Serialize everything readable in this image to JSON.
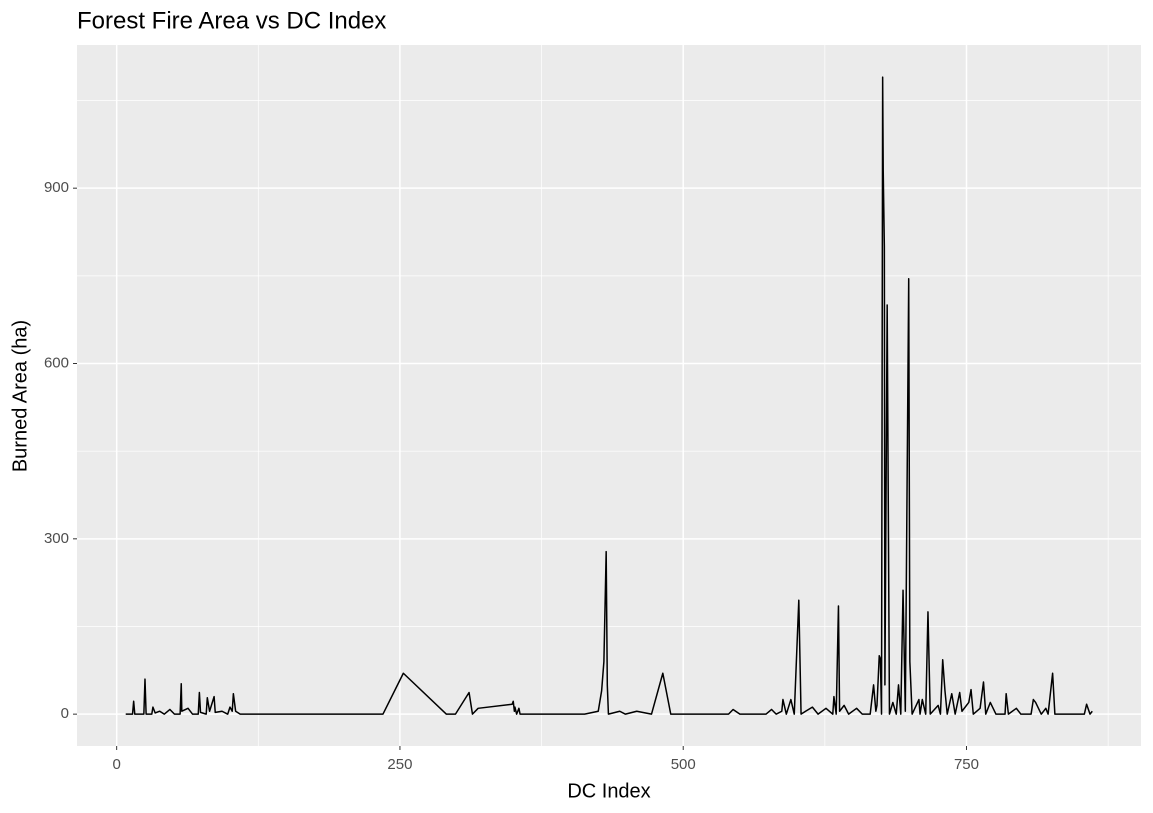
{
  "chart_data": {
    "type": "line",
    "title": "Forest Fire Area vs DC Index",
    "xlabel": "DC Index",
    "ylabel": "Burned Area (ha)",
    "x": [
      8,
      14,
      15,
      16,
      24,
      25,
      26,
      31,
      32,
      34,
      38,
      42,
      47,
      51,
      56,
      57,
      57.5,
      63,
      67,
      72,
      73,
      74,
      79,
      80,
      82,
      86,
      87,
      93,
      98,
      100,
      102,
      103,
      105,
      109,
      235,
      253,
      291,
      299,
      311,
      314,
      319,
      349,
      350,
      351,
      351.5,
      353,
      355,
      356,
      413,
      425,
      428,
      430,
      432,
      433,
      434,
      444,
      449,
      459,
      472,
      482,
      489,
      540,
      544,
      550,
      573,
      578,
      582,
      587,
      588,
      591,
      595,
      598,
      602,
      604,
      608,
      614,
      619,
      626,
      632,
      633,
      635,
      637,
      638,
      642,
      646,
      653,
      658,
      665,
      668,
      670,
      671,
      673,
      674,
      675,
      676,
      676.5,
      677.5,
      678,
      680,
      682,
      685,
      688,
      690,
      692,
      694,
      696,
      699,
      700,
      702,
      708,
      709,
      711,
      714,
      716,
      718,
      725,
      727,
      729,
      731,
      733,
      737,
      740,
      744,
      746,
      752,
      754,
      756,
      762,
      765,
      767,
      771,
      776,
      784,
      785,
      787,
      794,
      798,
      807,
      809,
      811,
      816,
      820,
      822,
      826,
      828,
      854,
      856,
      859,
      861
    ],
    "values": [
      0,
      0,
      22,
      0,
      0,
      60,
      0,
      0,
      12,
      2,
      5,
      0,
      8,
      0,
      0,
      52,
      5,
      10,
      0,
      0,
      37,
      3,
      0,
      28,
      5,
      30,
      3,
      5,
      0,
      12,
      5,
      35,
      5,
      0,
      0,
      70,
      0,
      0,
      37,
      0,
      10,
      17,
      22,
      5,
      12,
      0,
      10,
      0,
      0,
      5,
      40,
      90,
      278,
      50,
      0,
      5,
      0,
      5,
      0,
      70,
      0,
      0,
      8,
      0,
      0,
      8,
      0,
      5,
      25,
      0,
      25,
      0,
      195,
      0,
      5,
      12,
      0,
      10,
      0,
      30,
      0,
      185,
      5,
      15,
      0,
      10,
      0,
      0,
      50,
      5,
      15,
      100,
      95,
      0,
      1090,
      930,
      800,
      50,
      700,
      0,
      20,
      0,
      50,
      0,
      212,
      5,
      745,
      90,
      0,
      25,
      0,
      25,
      0,
      175,
      0,
      15,
      0,
      93,
      40,
      0,
      35,
      0,
      37,
      5,
      20,
      42,
      0,
      10,
      55,
      0,
      20,
      0,
      0,
      35,
      0,
      10,
      0,
      0,
      25,
      20,
      0,
      10,
      0,
      70,
      0,
      0,
      17,
      0,
      5
    ],
    "color": "#000000",
    "xlim": [
      -35,
      904
    ],
    "ylim": [
      -54.5,
      1145
    ],
    "xticks": [
      0,
      250,
      500,
      750
    ],
    "yticks": [
      0,
      300,
      600,
      900
    ],
    "xminor": [
      125,
      375,
      625,
      875
    ],
    "yminor": [
      150,
      450,
      750,
      1050
    ],
    "grid": true,
    "panel_color": "#ebebeb"
  }
}
